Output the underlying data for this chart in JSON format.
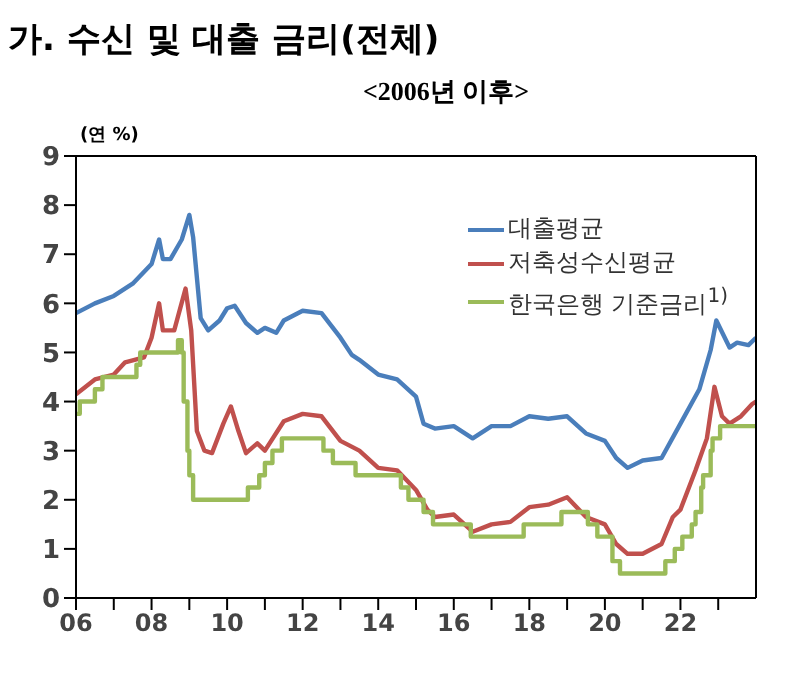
{
  "chart_data": {
    "type": "line",
    "title": "가. 수신 및 대출 금리(전체)",
    "subtitle": "<2006년 이후>",
    "ylabel": "(연 %)",
    "xlim": [
      2006,
      2024
    ],
    "xticks": [
      {
        "value": 2006,
        "label": "06"
      },
      {
        "value": 2007,
        "label": null
      },
      {
        "value": 2008,
        "label": "08"
      },
      {
        "value": 2009,
        "label": null
      },
      {
        "value": 2010,
        "label": "10"
      },
      {
        "value": 2011,
        "label": null
      },
      {
        "value": 2012,
        "label": "12"
      },
      {
        "value": 2013,
        "label": null
      },
      {
        "value": 2014,
        "label": "14"
      },
      {
        "value": 2015,
        "label": null
      },
      {
        "value": 2016,
        "label": "16"
      },
      {
        "value": 2017,
        "label": null
      },
      {
        "value": 2018,
        "label": "18"
      },
      {
        "value": 2019,
        "label": null
      },
      {
        "value": 2020,
        "label": "20"
      },
      {
        "value": 2021,
        "label": null
      },
      {
        "value": 2022,
        "label": "22"
      },
      {
        "value": 2023,
        "label": null
      }
    ],
    "ylim": [
      0,
      9
    ],
    "yticks": [
      0,
      1,
      2,
      3,
      4,
      5,
      6,
      7,
      8,
      9
    ],
    "legend": "top right",
    "series": [
      {
        "name": "대출평균",
        "color": "#4a7ebb",
        "x": [
          2006.0,
          2006.5,
          2007.0,
          2007.5,
          2008.0,
          2008.2,
          2008.3,
          2008.5,
          2008.8,
          2009.0,
          2009.1,
          2009.3,
          2009.5,
          2009.8,
          2010.0,
          2010.2,
          2010.5,
          2010.8,
          2011.0,
          2011.3,
          2011.5,
          2012.0,
          2012.5,
          2013.0,
          2013.3,
          2013.5,
          2014.0,
          2014.5,
          2015.0,
          2015.2,
          2015.5,
          2016.0,
          2016.5,
          2017.0,
          2017.5,
          2018.0,
          2018.5,
          2019.0,
          2019.5,
          2020.0,
          2020.3,
          2020.6,
          2021.0,
          2021.5,
          2022.0,
          2022.5,
          2022.8,
          2022.95,
          2023.3,
          2023.5,
          2023.8,
          2024.0
        ],
        "values": [
          5.8,
          6.0,
          6.15,
          6.4,
          6.8,
          7.3,
          6.9,
          6.9,
          7.3,
          7.8,
          7.35,
          5.7,
          5.45,
          5.65,
          5.9,
          5.95,
          5.6,
          5.4,
          5.5,
          5.4,
          5.65,
          5.85,
          5.8,
          5.3,
          4.95,
          4.85,
          4.55,
          4.45,
          4.1,
          3.55,
          3.45,
          3.5,
          3.25,
          3.5,
          3.5,
          3.7,
          3.65,
          3.7,
          3.35,
          3.2,
          2.85,
          2.65,
          2.8,
          2.85,
          3.55,
          4.25,
          5.05,
          5.65,
          5.1,
          5.2,
          5.15,
          5.3
        ]
      },
      {
        "name": "저축성수신평균",
        "color": "#c0504d",
        "x": [
          2006.0,
          2006.5,
          2007.0,
          2007.3,
          2007.8,
          2008.0,
          2008.2,
          2008.3,
          2008.6,
          2008.9,
          2009.05,
          2009.2,
          2009.4,
          2009.6,
          2009.9,
          2010.1,
          2010.3,
          2010.5,
          2010.8,
          2011.0,
          2011.5,
          2012.0,
          2012.5,
          2013.0,
          2013.5,
          2014.0,
          2014.5,
          2015.0,
          2015.3,
          2015.5,
          2016.0,
          2016.5,
          2017.0,
          2017.5,
          2018.0,
          2018.5,
          2019.0,
          2019.5,
          2020.0,
          2020.3,
          2020.6,
          2021.0,
          2021.5,
          2021.8,
          2022.0,
          2022.4,
          2022.7,
          2022.9,
          2023.1,
          2023.3,
          2023.6,
          2023.9,
          2024.0
        ],
        "values": [
          4.15,
          4.45,
          4.55,
          4.8,
          4.9,
          5.3,
          6.0,
          5.45,
          5.45,
          6.3,
          5.45,
          3.4,
          3.0,
          2.95,
          3.55,
          3.9,
          3.4,
          2.95,
          3.15,
          3.0,
          3.6,
          3.75,
          3.7,
          3.2,
          3.0,
          2.65,
          2.6,
          2.2,
          1.8,
          1.65,
          1.7,
          1.35,
          1.5,
          1.55,
          1.85,
          1.9,
          2.05,
          1.65,
          1.5,
          1.1,
          0.9,
          0.9,
          1.1,
          1.65,
          1.8,
          2.6,
          3.25,
          4.3,
          3.7,
          3.55,
          3.7,
          3.95,
          4.0
        ]
      },
      {
        "name": "한국은행 기준금리$^{1)}$",
        "color": "#9bbb59",
        "type": "step",
        "x": [
          2006.0,
          2006.1,
          2006.5,
          2006.7,
          2007.6,
          2007.7,
          2008.7,
          2008.8,
          2008.85,
          2008.95,
          2009.0,
          2009.1,
          2010.55,
          2010.85,
          2011.0,
          2011.2,
          2011.45,
          2012.55,
          2012.8,
          2013.4,
          2014.6,
          2014.8,
          2015.2,
          2015.45,
          2016.45,
          2017.85,
          2018.85,
          2019.55,
          2019.8,
          2020.2,
          2020.4,
          2021.6,
          2021.85,
          2022.05,
          2022.3,
          2022.4,
          2022.55,
          2022.6,
          2022.8,
          2022.85,
          2023.05,
          2024.0
        ],
        "values": [
          3.75,
          4.0,
          4.25,
          4.5,
          4.75,
          5.0,
          5.25,
          5.0,
          4.0,
          3.0,
          2.5,
          2.0,
          2.25,
          2.5,
          2.75,
          3.0,
          3.25,
          3.0,
          2.75,
          2.5,
          2.25,
          2.0,
          1.75,
          1.5,
          1.25,
          1.5,
          1.75,
          1.5,
          1.25,
          0.75,
          0.5,
          0.75,
          1.0,
          1.25,
          1.5,
          1.75,
          2.25,
          2.5,
          3.0,
          3.25,
          3.5,
          3.5
        ]
      }
    ]
  }
}
